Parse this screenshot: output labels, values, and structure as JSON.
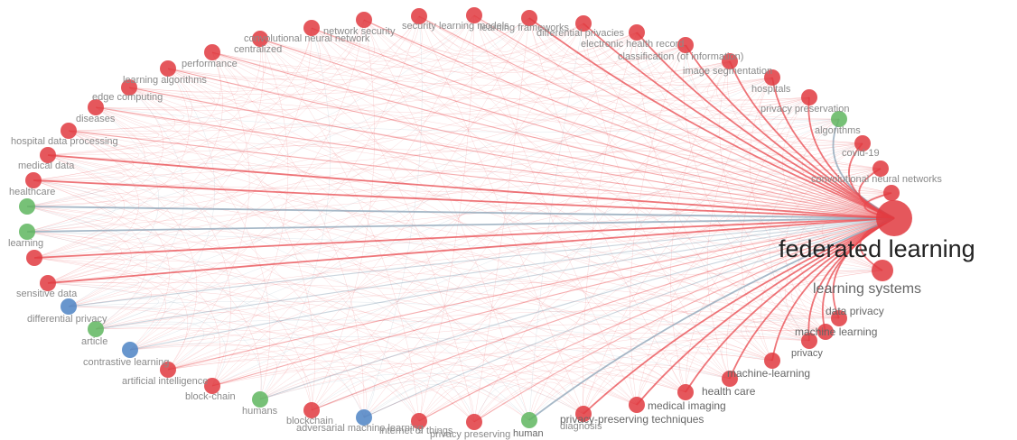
{
  "network": {
    "colors": {
      "red": "#e13a3f",
      "green": "#5fb65f",
      "blue": "#4d84c4",
      "edge": "#e8474c",
      "edge_alt": "#8aa2b6"
    },
    "nodes": [
      {
        "id": "fl",
        "label": "federated learning",
        "cluster": "red",
        "weight": 100
      },
      {
        "id": "ls",
        "label": "learning systems",
        "cluster": "red",
        "weight": 40
      },
      {
        "id": "dp",
        "label": "data privacy",
        "cluster": "red",
        "weight": 10
      },
      {
        "id": "ml",
        "label": "machine learning",
        "cluster": "red",
        "weight": 9
      },
      {
        "id": "pr",
        "label": "privacy",
        "cluster": "red",
        "weight": 8
      },
      {
        "id": "mlh",
        "label": "machine-learning",
        "cluster": "red",
        "weight": 8
      },
      {
        "id": "hc",
        "label": "health care",
        "cluster": "red",
        "weight": 8
      },
      {
        "id": "mi",
        "label": "medical imaging",
        "cluster": "red",
        "weight": 7
      },
      {
        "id": "ppt",
        "label": "privacy-preserving techniques",
        "cluster": "red",
        "weight": 7
      },
      {
        "id": "dg",
        "label": "diagnosis",
        "cluster": "red",
        "weight": 6
      },
      {
        "id": "hu",
        "label": "human",
        "cluster": "green",
        "weight": 6
      },
      {
        "id": "pp",
        "label": "privacy preserving",
        "cluster": "red",
        "weight": 6
      },
      {
        "id": "iot",
        "label": "internet of things",
        "cluster": "red",
        "weight": 6
      },
      {
        "id": "aml",
        "label": "adversarial machine learning",
        "cluster": "blue",
        "weight": 6
      },
      {
        "id": "bc",
        "label": "blockchain",
        "cluster": "red",
        "weight": 6
      },
      {
        "id": "hus",
        "label": "humans",
        "cluster": "green",
        "weight": 6
      },
      {
        "id": "bch",
        "label": "block-chain",
        "cluster": "red",
        "weight": 6
      },
      {
        "id": "ai",
        "label": "artificial intelligence",
        "cluster": "red",
        "weight": 6
      },
      {
        "id": "cl",
        "label": "contrastive learning",
        "cluster": "blue",
        "weight": 6
      },
      {
        "id": "ar",
        "label": "article",
        "cluster": "green",
        "weight": 6
      },
      {
        "id": "dpv",
        "label": "differential privacy",
        "cluster": "blue",
        "weight": 6
      },
      {
        "id": "sd",
        "label": "sensitive data",
        "cluster": "red",
        "weight": 6
      },
      {
        "id": "u1",
        "label": "",
        "cluster": "red",
        "weight": 6
      },
      {
        "id": "le",
        "label": "learning",
        "cluster": "green",
        "weight": 6
      },
      {
        "id": "hcare",
        "label": "healthcare",
        "cluster": "green",
        "weight": 6
      },
      {
        "id": "u2",
        "label": "",
        "cluster": "red",
        "weight": 6
      },
      {
        "id": "md",
        "label": "medical data",
        "cluster": "red",
        "weight": 6
      },
      {
        "id": "hdp",
        "label": "hospital data processing",
        "cluster": "red",
        "weight": 6
      },
      {
        "id": "dis",
        "label": "diseases",
        "cluster": "red",
        "weight": 6
      },
      {
        "id": "ec",
        "label": "edge computing",
        "cluster": "red",
        "weight": 6
      },
      {
        "id": "la",
        "label": "learning algorithms",
        "cluster": "red",
        "weight": 6
      },
      {
        "id": "perf",
        "label": "performance",
        "cluster": "red",
        "weight": 6
      },
      {
        "id": "cen",
        "label": "centralized",
        "cluster": "red",
        "weight": 6
      },
      {
        "id": "cnn",
        "label": "convolutional neural network",
        "cluster": "red",
        "weight": 6
      },
      {
        "id": "ns",
        "label": "network security",
        "cluster": "red",
        "weight": 6
      },
      {
        "id": "sec",
        "label": "security",
        "cluster": "red",
        "weight": 6
      },
      {
        "id": "lm",
        "label": "learning models",
        "cluster": "red",
        "weight": 6
      },
      {
        "id": "lf",
        "label": "learning frameworks",
        "cluster": "red",
        "weight": 6
      },
      {
        "id": "dpr",
        "label": "differential privacies",
        "cluster": "red",
        "weight": 6
      },
      {
        "id": "ehr",
        "label": "electronic health record",
        "cluster": "red",
        "weight": 6
      },
      {
        "id": "coi",
        "label": "classification (of information)",
        "cluster": "red",
        "weight": 6
      },
      {
        "id": "is",
        "label": "image segmentation",
        "cluster": "red",
        "weight": 6
      },
      {
        "id": "hos",
        "label": "hospitals",
        "cluster": "red",
        "weight": 6
      },
      {
        "id": "ppres",
        "label": "privacy preservation",
        "cluster": "red",
        "weight": 6
      },
      {
        "id": "alg",
        "label": "algorithms",
        "cluster": "green",
        "weight": 6
      },
      {
        "id": "cov",
        "label": "covid-19",
        "cluster": "red",
        "weight": 6
      },
      {
        "id": "cnns",
        "label": "convolutional neural networks",
        "cluster": "red",
        "weight": 6
      },
      {
        "id": "u3",
        "label": "",
        "cluster": "red",
        "weight": 6
      }
    ]
  }
}
